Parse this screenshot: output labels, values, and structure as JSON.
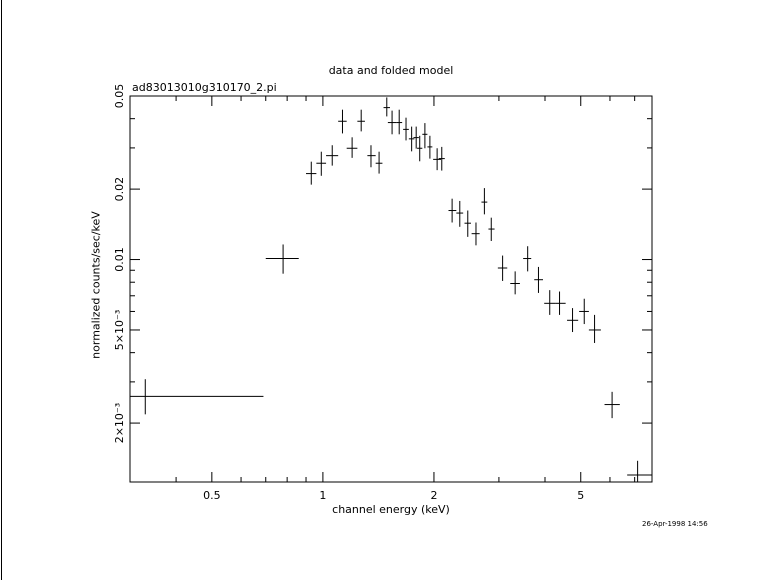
{
  "chart_data": {
    "type": "scatter",
    "title": "data and folded model",
    "subtitle": "ad83013010g310170_2.pi",
    "xlabel": "channel energy (keV)",
    "ylabel": "normalized counts/sec/keV",
    "xscale": "log",
    "yscale": "log",
    "xlim": [
      0.3,
      7.8
    ],
    "ylim": [
      0.00112,
      0.05
    ],
    "xticks": [
      {
        "value": 0.5,
        "label": "0.5"
      },
      {
        "value": 1,
        "label": "1"
      },
      {
        "value": 2,
        "label": "2"
      },
      {
        "value": 5,
        "label": "5"
      }
    ],
    "yticks": [
      {
        "value": 0.002,
        "label": "2×10⁻³"
      },
      {
        "value": 0.005,
        "label": "5×10⁻³"
      },
      {
        "value": 0.01,
        "label": "0.01"
      },
      {
        "value": 0.02,
        "label": "0.02"
      },
      {
        "value": 0.05,
        "label": "0.05"
      }
    ],
    "series": [
      {
        "points": [
          {
            "x": 0.33,
            "xlo": 0.3,
            "xhi": 0.69,
            "y": 0.0026,
            "ylo": 0.00218,
            "yhi": 0.00308
          },
          {
            "x": 0.78,
            "xlo": 0.7,
            "xhi": 0.86,
            "y": 0.0101,
            "ylo": 0.0087,
            "yhi": 0.0116
          },
          {
            "x": 0.93,
            "xlo": 0.9,
            "xhi": 0.96,
            "y": 0.0233,
            "ylo": 0.0209,
            "yhi": 0.0262
          },
          {
            "x": 0.99,
            "xlo": 0.96,
            "xhi": 1.02,
            "y": 0.0258,
            "ylo": 0.0228,
            "yhi": 0.0289
          },
          {
            "x": 1.06,
            "xlo": 1.02,
            "xhi": 1.1,
            "y": 0.0278,
            "ylo": 0.0252,
            "yhi": 0.0308
          },
          {
            "x": 1.13,
            "xlo": 1.1,
            "xhi": 1.16,
            "y": 0.039,
            "ylo": 0.0346,
            "yhi": 0.0437
          },
          {
            "x": 1.2,
            "xlo": 1.16,
            "xhi": 1.24,
            "y": 0.0299,
            "ylo": 0.0272,
            "yhi": 0.0333
          },
          {
            "x": 1.27,
            "xlo": 1.24,
            "xhi": 1.3,
            "y": 0.039,
            "ylo": 0.0353,
            "yhi": 0.0437
          },
          {
            "x": 1.35,
            "xlo": 1.32,
            "xhi": 1.39,
            "y": 0.0278,
            "ylo": 0.0248,
            "yhi": 0.0308
          },
          {
            "x": 1.42,
            "xlo": 1.39,
            "xhi": 1.45,
            "y": 0.0258,
            "ylo": 0.0233,
            "yhi": 0.0289
          },
          {
            "x": 1.49,
            "xlo": 1.46,
            "xhi": 1.52,
            "y": 0.0446,
            "ylo": 0.0409,
            "yhi": 0.0493
          },
          {
            "x": 1.54,
            "xlo": 1.5,
            "xhi": 1.58,
            "y": 0.0385,
            "ylo": 0.0343,
            "yhi": 0.0433
          },
          {
            "x": 1.61,
            "xlo": 1.58,
            "xhi": 1.64,
            "y": 0.0385,
            "ylo": 0.0343,
            "yhi": 0.0437
          },
          {
            "x": 1.68,
            "xlo": 1.65,
            "xhi": 1.71,
            "y": 0.036,
            "ylo": 0.0323,
            "yhi": 0.0404
          },
          {
            "x": 1.74,
            "xlo": 1.71,
            "xhi": 1.77,
            "y": 0.0328,
            "ylo": 0.029,
            "yhi": 0.037
          },
          {
            "x": 1.79,
            "xlo": 1.76,
            "xhi": 1.82,
            "y": 0.0332,
            "ylo": 0.0298,
            "yhi": 0.037
          },
          {
            "x": 1.83,
            "xlo": 1.8,
            "xhi": 1.86,
            "y": 0.0299,
            "ylo": 0.0263,
            "yhi": 0.0338
          },
          {
            "x": 1.89,
            "xlo": 1.86,
            "xhi": 1.92,
            "y": 0.0343,
            "ylo": 0.0299,
            "yhi": 0.0383
          },
          {
            "x": 1.95,
            "xlo": 1.92,
            "xhi": 1.98,
            "y": 0.0303,
            "ylo": 0.027,
            "yhi": 0.0338
          },
          {
            "x": 2.04,
            "xlo": 1.99,
            "xhi": 2.09,
            "y": 0.0268,
            "ylo": 0.0241,
            "yhi": 0.0299
          },
          {
            "x": 2.1,
            "xlo": 2.06,
            "xhi": 2.14,
            "y": 0.027,
            "ylo": 0.024,
            "yhi": 0.0303
          },
          {
            "x": 2.24,
            "xlo": 2.19,
            "xhi": 2.3,
            "y": 0.0162,
            "ylo": 0.0144,
            "yhi": 0.0182
          },
          {
            "x": 2.35,
            "xlo": 2.3,
            "xhi": 2.4,
            "y": 0.0158,
            "ylo": 0.0138,
            "yhi": 0.0178
          },
          {
            "x": 2.47,
            "xlo": 2.42,
            "xhi": 2.52,
            "y": 0.0143,
            "ylo": 0.0125,
            "yhi": 0.0162
          },
          {
            "x": 2.6,
            "xlo": 2.53,
            "xhi": 2.66,
            "y": 0.0129,
            "ylo": 0.0115,
            "yhi": 0.0144
          },
          {
            "x": 2.74,
            "xlo": 2.69,
            "xhi": 2.79,
            "y": 0.0176,
            "ylo": 0.0156,
            "yhi": 0.0202
          },
          {
            "x": 2.86,
            "xlo": 2.81,
            "xhi": 2.92,
            "y": 0.0135,
            "ylo": 0.012,
            "yhi": 0.0151
          },
          {
            "x": 3.07,
            "xlo": 2.98,
            "xhi": 3.16,
            "y": 0.0092,
            "ylo": 0.0081,
            "yhi": 0.0104
          },
          {
            "x": 3.32,
            "xlo": 3.22,
            "xhi": 3.42,
            "y": 0.0079,
            "ylo": 0.0071,
            "yhi": 0.0089
          },
          {
            "x": 3.59,
            "xlo": 3.49,
            "xhi": 3.67,
            "y": 0.0101,
            "ylo": 0.0089,
            "yhi": 0.0114
          },
          {
            "x": 3.84,
            "xlo": 3.74,
            "xhi": 3.95,
            "y": 0.0082,
            "ylo": 0.0072,
            "yhi": 0.0093
          },
          {
            "x": 4.12,
            "xlo": 3.98,
            "xhi": 4.26,
            "y": 0.0065,
            "ylo": 0.0058,
            "yhi": 0.0074
          },
          {
            "x": 4.38,
            "xlo": 4.26,
            "xhi": 4.55,
            "y": 0.0065,
            "ylo": 0.0058,
            "yhi": 0.0073
          },
          {
            "x": 4.75,
            "xlo": 4.59,
            "xhi": 4.92,
            "y": 0.0055,
            "ylo": 0.0049,
            "yhi": 0.0062
          },
          {
            "x": 5.11,
            "xlo": 4.95,
            "xhi": 5.26,
            "y": 0.006,
            "ylo": 0.0053,
            "yhi": 0.0068
          },
          {
            "x": 5.45,
            "xlo": 5.26,
            "xhi": 5.67,
            "y": 0.005,
            "ylo": 0.0044,
            "yhi": 0.0058
          },
          {
            "x": 6.08,
            "xlo": 5.8,
            "xhi": 6.38,
            "y": 0.0024,
            "ylo": 0.0021,
            "yhi": 0.00272
          },
          {
            "x": 7.13,
            "xlo": 6.68,
            "xhi": 7.78,
            "y": 0.0012,
            "ylo": 0.00108,
            "yhi": 0.00138
          }
        ]
      }
    ]
  },
  "timestamp": "26-Apr-1998 14:56"
}
